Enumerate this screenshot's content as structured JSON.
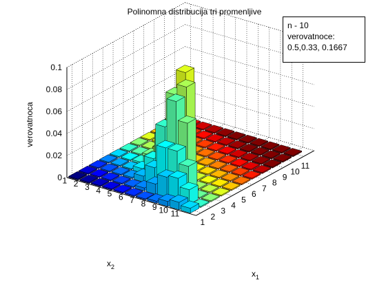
{
  "chart_data": {
    "type": "bar3d",
    "title": "Polinomna distribucija tri promenljive",
    "xlabel": "x1",
    "ylabel": "x2",
    "zlabel": "verovatnoca",
    "x_ticks": [
      "1",
      "2",
      "3",
      "4",
      "5",
      "6",
      "7",
      "8",
      "9",
      "10",
      "11"
    ],
    "y_ticks": [
      "1",
      "2",
      "3",
      "4",
      "5",
      "6",
      "7",
      "8",
      "9",
      "10",
      "11"
    ],
    "z_ticks": [
      "0",
      "0.02",
      "0.04",
      "0.06",
      "0.08",
      "0.1"
    ],
    "zlim": [
      0,
      0.1
    ],
    "grid": true,
    "legend": {
      "placement": "top-right",
      "lines": [
        "n - 10",
        "verovatnoce:",
        "0.5,0.33, 0.1667"
      ]
    },
    "parameters": {
      "n": 10,
      "p": [
        0.5,
        0.33,
        0.1667
      ]
    },
    "note": "values[i][j] = probability at x1 = i+1, x2 = j+1 (count1 = i, count2 = j, count3 = 10 - i - j)",
    "values": [
      [
        0.0,
        0.0,
        0.0,
        0.0,
        0.0,
        0.0001,
        0.0004,
        0.0018,
        0.0046,
        0.0068,
        0.0044
      ],
      [
        0.0,
        0.0,
        0.0001,
        0.0002,
        0.0009,
        0.0027,
        0.0092,
        0.0185,
        0.0205,
        0.0131,
        0.0
      ],
      [
        0.0,
        0.0,
        0.0002,
        0.0012,
        0.0053,
        0.016,
        0.037,
        0.037,
        0.0262,
        0.0,
        0.0
      ],
      [
        0.0,
        0.0001,
        0.0007,
        0.004,
        0.016,
        0.048,
        0.074,
        0.0573,
        0.0,
        0.0,
        0.0
      ],
      [
        0.0,
        0.0002,
        0.0016,
        0.008,
        0.032,
        0.072,
        0.082,
        0.0,
        0.0,
        0.0,
        0.0
      ],
      [
        0.0,
        0.0004,
        0.0027,
        0.012,
        0.0395,
        0.087,
        0.0,
        0.0,
        0.0,
        0.0,
        0.0
      ],
      [
        0.0001,
        0.0005,
        0.0034,
        0.016,
        0.03,
        0.0,
        0.0,
        0.0,
        0.0,
        0.0,
        0.0
      ],
      [
        0.0001,
        0.0007,
        0.0035,
        0.014,
        0.0,
        0.0,
        0.0,
        0.0,
        0.0,
        0.0,
        0.0
      ],
      [
        0.0001,
        0.0006,
        0.0023,
        0.0,
        0.0,
        0.0,
        0.0,
        0.0,
        0.0,
        0.0,
        0.0
      ],
      [
        0.0001,
        0.0005,
        0.0,
        0.0,
        0.0,
        0.0,
        0.0,
        0.0,
        0.0,
        0.0,
        0.0
      ],
      [
        0.001,
        0.0,
        0.0,
        0.0,
        0.0,
        0.0,
        0.0,
        0.0,
        0.0,
        0.0,
        0.0
      ]
    ]
  }
}
